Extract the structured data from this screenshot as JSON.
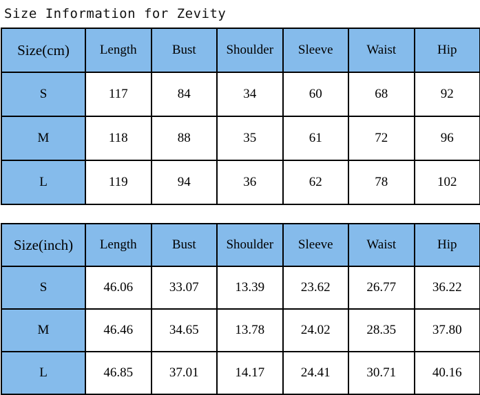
{
  "page": {
    "title": "Size Information for Zevity"
  },
  "colors": {
    "header_blue": "#85BBEB",
    "border": "#000000",
    "background": "#FFFFFF",
    "text": "#000000"
  },
  "tables": [
    {
      "unit": "cm",
      "headers": [
        "Size(cm)",
        "Length",
        "Bust",
        "Shoulder",
        "Sleeve",
        "Waist",
        "Hip"
      ],
      "rows": [
        {
          "label": "S",
          "values": [
            "117",
            "84",
            "34",
            "60",
            "68",
            "92"
          ]
        },
        {
          "label": "M",
          "values": [
            "118",
            "88",
            "35",
            "61",
            "72",
            "96"
          ]
        },
        {
          "label": "L",
          "values": [
            "119",
            "94",
            "36",
            "62",
            "78",
            "102"
          ]
        }
      ]
    },
    {
      "unit": "inch",
      "headers": [
        "Size(inch)",
        "Length",
        "Bust",
        "Shoulder",
        "Sleeve",
        "Waist",
        "Hip"
      ],
      "rows": [
        {
          "label": "S",
          "values": [
            "46.06",
            "33.07",
            "13.39",
            "23.62",
            "26.77",
            "36.22"
          ]
        },
        {
          "label": "M",
          "values": [
            "46.46",
            "34.65",
            "13.78",
            "24.02",
            "28.35",
            "37.80"
          ]
        },
        {
          "label": "L",
          "values": [
            "46.85",
            "37.01",
            "14.17",
            "24.41",
            "30.71",
            "40.16"
          ]
        }
      ]
    }
  ]
}
